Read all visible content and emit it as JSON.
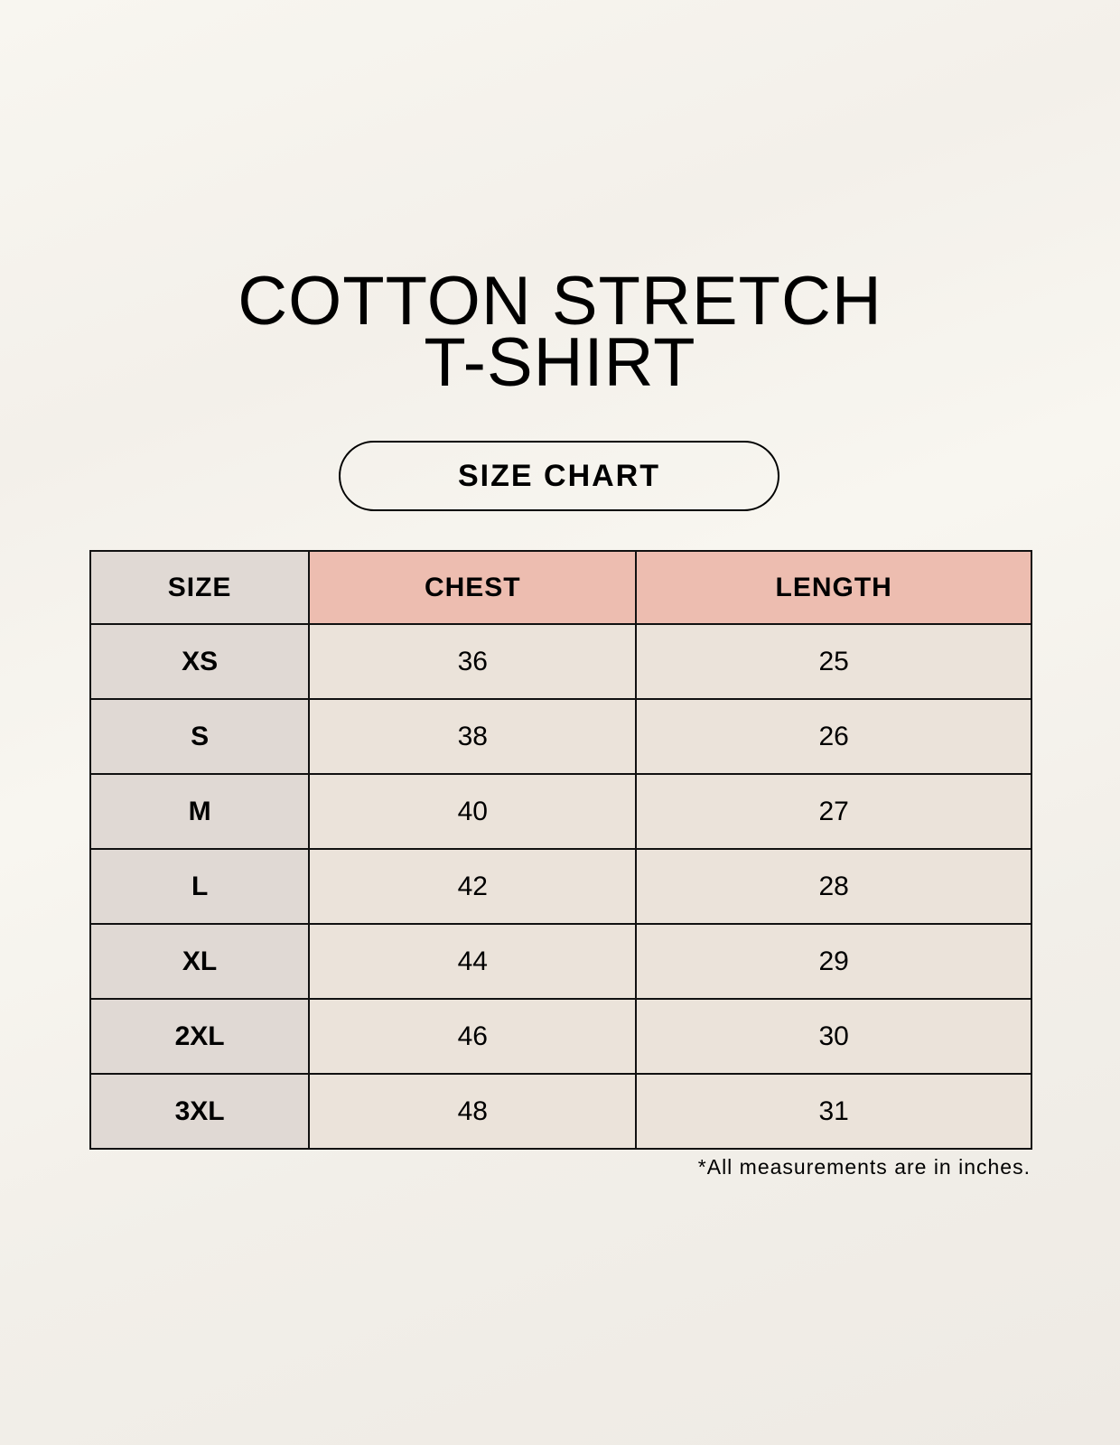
{
  "title": {
    "line1": "COTTON STRETCH",
    "line2": "T-SHIRT"
  },
  "badge": "SIZE CHART",
  "table": {
    "headers": [
      "SIZE",
      "CHEST",
      "LENGTH"
    ],
    "rows": [
      [
        "XS",
        "36",
        "25"
      ],
      [
        "S",
        "38",
        "26"
      ],
      [
        "M",
        "40",
        "27"
      ],
      [
        "L",
        "42",
        "28"
      ],
      [
        "XL",
        "44",
        "29"
      ],
      [
        "2XL",
        "46",
        "30"
      ],
      [
        "3XL",
        "48",
        "31"
      ]
    ]
  },
  "footnote": "*All measurements are in inches.",
  "colors": {
    "size_column": "#e0d9d4",
    "header_accent": "#edbdb0",
    "cell": "#ebe3da"
  }
}
